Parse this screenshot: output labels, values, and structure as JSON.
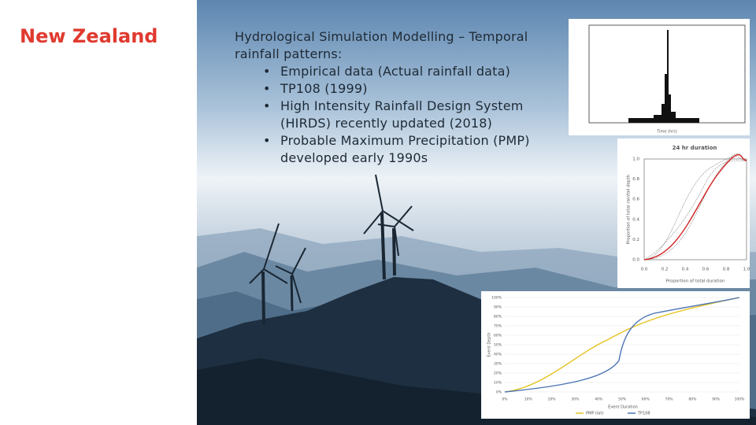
{
  "header": {
    "title": "New Zealand"
  },
  "body": {
    "intro": "Hydrological Simulation Modelling – Temporal rainfall patterns:",
    "bullets": [
      "Empirical data (Actual rainfall data)",
      "TP108 (1999)",
      "High Intensity Rainfall Design System (HIRDS) recently updated (2018)",
      "Probable Maximum Precipitation (PMP) developed early 1990s"
    ]
  },
  "figures": [
    {
      "x_label": "Time (hrs)"
    },
    {
      "title": "24 hr duration",
      "y_label": "Proportion of total rainfall depth",
      "x_label": "Proportion of total duration",
      "xticks": [
        "0.0",
        "0.2",
        "0.4",
        "0.6",
        "0.8",
        "1.0"
      ],
      "yticks": [
        "0.0",
        "0.2",
        "0.4",
        "0.6",
        "0.8",
        "1.0"
      ]
    },
    {
      "y_label": "Event Depth",
      "x_label": "Event Duration",
      "legend": [
        "PMP (lat)",
        "TP108"
      ],
      "xticks": [
        "0%",
        "10%",
        "20%",
        "30%",
        "40%",
        "50%",
        "60%",
        "70%",
        "80%",
        "90%",
        "100%"
      ],
      "yticks": [
        "0%",
        "10%",
        "20%",
        "30%",
        "40%",
        "50%",
        "60%",
        "70%",
        "80%",
        "90%",
        "100%"
      ]
    }
  ]
}
